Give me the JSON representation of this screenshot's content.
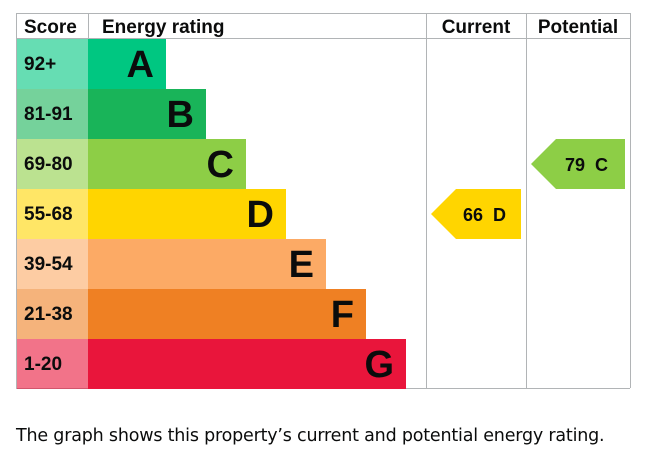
{
  "chart_data": {
    "type": "bar",
    "headers": {
      "score": "Score",
      "rating": "Energy rating",
      "current": "Current",
      "potential": "Potential"
    },
    "bands": [
      {
        "letter": "A",
        "range": "92+",
        "color": "#00c781"
      },
      {
        "letter": "B",
        "range": "81-91",
        "color": "#19b459"
      },
      {
        "letter": "C",
        "range": "69-80",
        "color": "#8dce46"
      },
      {
        "letter": "D",
        "range": "55-68",
        "color": "#ffd500"
      },
      {
        "letter": "E",
        "range": "39-54",
        "color": "#fcaa65"
      },
      {
        "letter": "F",
        "range": "21-38",
        "color": "#ef8023"
      },
      {
        "letter": "G",
        "range": "1-20",
        "color": "#e9153b"
      }
    ],
    "current": {
      "value": 66,
      "band": "D",
      "label": "66  D",
      "color": "#ffd500"
    },
    "potential": {
      "value": 79,
      "band": "C",
      "label": "79  C",
      "color": "#8dce46"
    }
  },
  "caption": "The graph shows this property’s current and potential energy rating."
}
